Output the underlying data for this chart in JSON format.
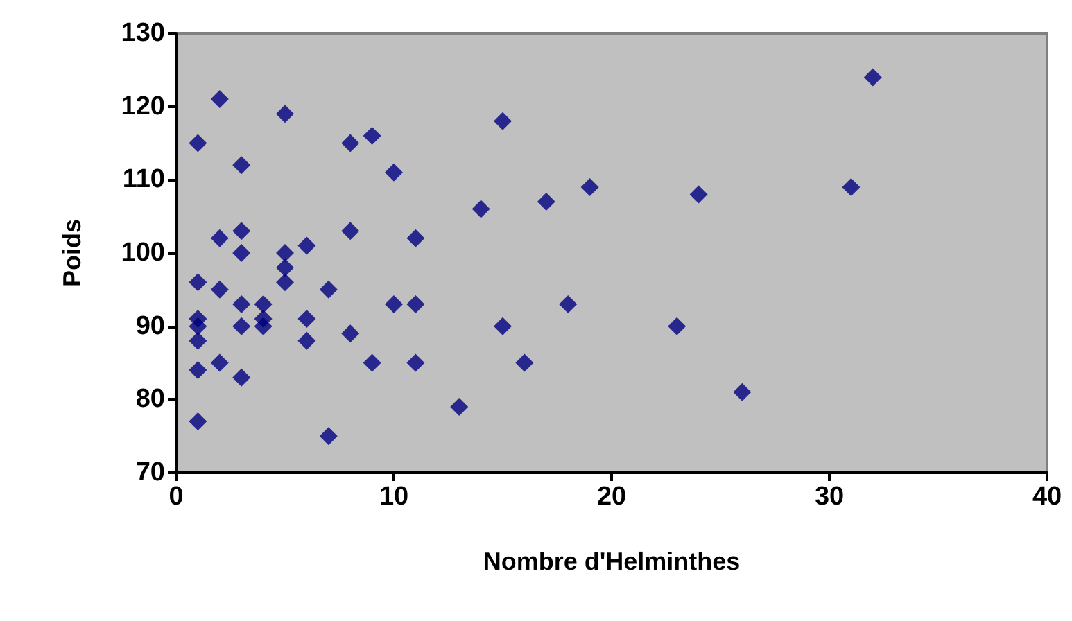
{
  "chart_data": {
    "type": "scatter",
    "xlabel": "Nombre d'Helminthes",
    "ylabel": "Poids",
    "marker": "diamond",
    "grid": false,
    "xlim": [
      0,
      40
    ],
    "xticks": [
      0,
      10,
      20,
      30,
      40
    ],
    "ylim": [
      70,
      130
    ],
    "yticks": [
      70,
      80,
      90,
      100,
      110,
      120,
      130
    ],
    "x": [
      1,
      1,
      1,
      1,
      1,
      1,
      1,
      2,
      2,
      2,
      2,
      3,
      3,
      3,
      3,
      3,
      3,
      4,
      4,
      4,
      5,
      5,
      5,
      5,
      6,
      6,
      6,
      7,
      7,
      8,
      8,
      8,
      9,
      9,
      10,
      10,
      11,
      11,
      11,
      13,
      14,
      15,
      15,
      16,
      17,
      18,
      19,
      23,
      24,
      26,
      31,
      32
    ],
    "series": [
      {
        "color": "#000080",
        "values": [
          115,
          96,
          91,
          90,
          88,
          84,
          77,
          121,
          102,
          95,
          85,
          112,
          103,
          100,
          93,
          90,
          83,
          93,
          91,
          90,
          119,
          100,
          98,
          96,
          101,
          91,
          88,
          95,
          75,
          115,
          103,
          89,
          116,
          85,
          111,
          93,
          102,
          93,
          85,
          79,
          106,
          118,
          90,
          85,
          107,
          93,
          109,
          90,
          108,
          81,
          109,
          124
        ]
      }
    ]
  }
}
